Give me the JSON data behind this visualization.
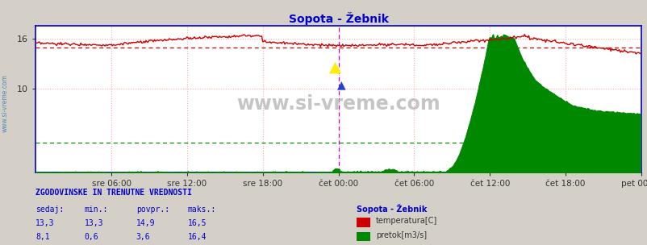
{
  "title": "Sopota - Žebnik",
  "title_color": "#0000cc",
  "bg_color": "#d4d0c8",
  "plot_bg_color": "#ffffff",
  "grid_color": "#ffaaaa",
  "xlim": [
    0,
    576
  ],
  "ylim": [
    0,
    17.5
  ],
  "yticks": [
    10,
    16
  ],
  "xtick_labels": [
    "sre 06:00",
    "sre 12:00",
    "sre 18:00",
    "čet 00:00",
    "čet 06:00",
    "čet 12:00",
    "čet 18:00",
    "pet 00:00"
  ],
  "xtick_positions": [
    72,
    144,
    216,
    288,
    360,
    432,
    504,
    576
  ],
  "temp_avg_line": 14.9,
  "flow_avg_line": 3.6,
  "temp_color": "#cc0000",
  "flow_color": "#008800",
  "temp_avg_color": "#cc0000",
  "flow_avg_color": "#008800",
  "axis_color": "#0000cc",
  "watermark": "www.si-vreme.com",
  "left_label": "www.si-vreme.com",
  "now_line_x": 288,
  "now_line_color": "#cc00cc",
  "legend_title": "Sopota - Žebnik",
  "legend_items": [
    "temperatura[C]",
    "pretok[m3/s]"
  ],
  "legend_colors": [
    "#cc0000",
    "#008800"
  ],
  "stats_header": "ZGODOVINSKE IN TRENUTNE VREDNOSTI",
  "stats_cols": [
    "sedaj:",
    "min.:",
    "povpr.:",
    "maks.:"
  ],
  "stats_temp": [
    13.3,
    13.3,
    14.9,
    16.5
  ],
  "stats_flow": [
    8.1,
    0.6,
    3.6,
    16.4
  ],
  "stats_color": "#0000cc",
  "n_points": 576
}
